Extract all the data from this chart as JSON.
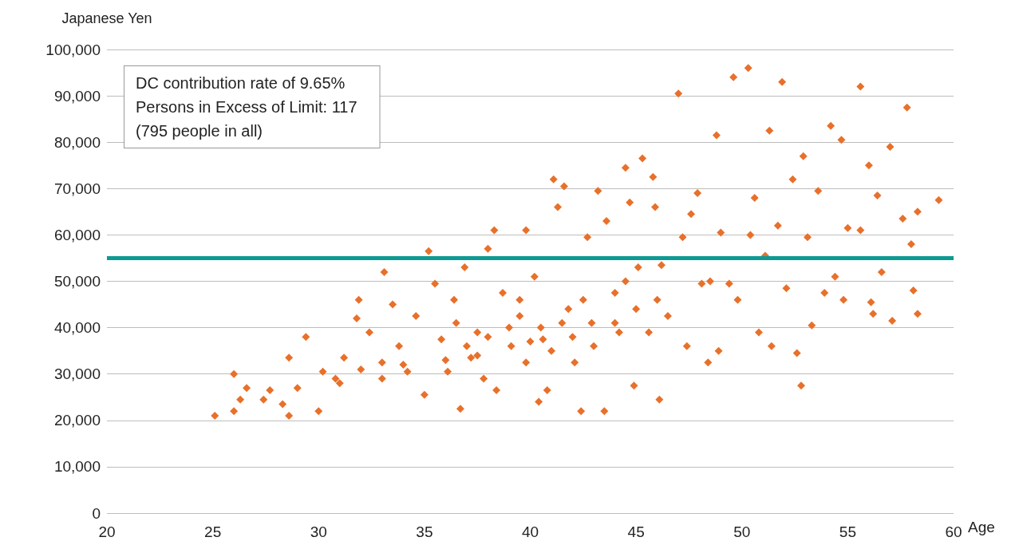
{
  "chart_data": {
    "type": "scatter",
    "xlabel": "Age",
    "ylabel": "Japanese Yen",
    "annotations": [
      "DC contribution rate of 9.65%\nPersons in Excess of Limit: 117\n(795 people in all)"
    ],
    "xlim": [
      20,
      60
    ],
    "xticks": [
      20,
      25,
      30,
      35,
      40,
      45,
      50,
      55,
      60
    ],
    "ylim": [
      0,
      100000
    ],
    "yticks": [
      {
        "value": 0,
        "label": "0"
      },
      {
        "value": 10000,
        "label": "10,000"
      },
      {
        "value": 20000,
        "label": "20,000"
      },
      {
        "value": 30000,
        "label": "30,000"
      },
      {
        "value": 40000,
        "label": "40,000"
      },
      {
        "value": 50000,
        "label": "50,000"
      },
      {
        "value": 60000,
        "label": "60,000"
      },
      {
        "value": 70000,
        "label": "70,000"
      },
      {
        "value": 80000,
        "label": "80,000"
      },
      {
        "value": 90000,
        "label": "90,000"
      },
      {
        "value": 100000,
        "label": "100,000"
      }
    ],
    "grid": "y",
    "marker": "diamond",
    "ref_lines": [
      {
        "axis": "y",
        "value": 55000,
        "label": null,
        "color": "#0e9a93"
      }
    ],
    "series": [
      {
        "color": "#e8702a",
        "x": [
          25.1,
          26.0,
          26.0,
          26.3,
          26.6,
          27.4,
          27.7,
          28.3,
          28.6,
          28.6,
          29.0,
          29.4,
          30.0,
          30.2,
          30.8,
          31.2,
          31.8,
          31.9,
          32.4,
          33.1,
          33.0,
          33.5,
          33.8,
          34.2,
          34.6,
          35.0,
          35.2,
          35.5,
          35.8,
          36.1,
          36.4,
          36.7,
          36.9,
          37.2,
          37.5,
          37.8,
          38.0,
          38.3,
          38.4,
          38.7,
          39.1,
          39.5,
          39.8,
          39.8,
          40.2,
          40.4,
          40.6,
          40.8,
          41.1,
          41.3,
          41.6,
          41.8,
          42.1,
          42.4,
          42.7,
          42.9,
          43.2,
          43.5,
          43.6,
          44.0,
          44.2,
          44.5,
          44.7,
          44.9,
          45.1,
          45.3,
          45.6,
          45.8,
          45.9,
          46.1,
          46.2,
          46.5,
          47.0,
          47.2,
          47.4,
          47.6,
          47.9,
          48.1,
          48.4,
          48.5,
          48.8,
          48.9,
          49.0,
          49.4,
          49.6,
          49.8,
          50.3,
          50.4,
          50.6,
          50.8,
          51.1,
          51.3,
          51.4,
          51.7,
          51.9,
          52.1,
          52.4,
          52.6,
          52.8,
          52.9,
          53.1,
          53.3,
          53.6,
          53.9,
          54.2,
          54.4,
          54.7,
          54.8,
          55.0,
          55.6,
          55.6,
          56.0,
          56.1,
          56.2,
          56.4,
          56.6,
          57.0,
          57.1,
          57.6,
          57.8,
          58.0,
          58.1,
          58.3,
          58.3,
          59.3,
          36.0,
          37.0,
          37.5,
          38.0,
          39.0,
          40.0,
          40.5,
          41.0,
          41.5,
          42.0,
          43.0,
          44.0,
          45.0,
          46.0,
          34.0,
          33.0,
          32.0,
          31.0,
          36.5,
          39.5,
          42.5,
          44.5
        ],
        "values": [
          21000,
          22000,
          30000,
          24500,
          27000,
          24500,
          26500,
          23500,
          21000,
          33500,
          27000,
          38000,
          22000,
          30500,
          29000,
          33500,
          42000,
          46000,
          39000,
          52000,
          32500,
          45000,
          36000,
          30500,
          42500,
          25500,
          56500,
          49500,
          37500,
          30500,
          46000,
          22500,
          53000,
          33500,
          39000,
          29000,
          57000,
          61000,
          26500,
          47500,
          36000,
          42500,
          61000,
          32500,
          51000,
          24000,
          37500,
          26500,
          72000,
          66000,
          70500,
          44000,
          32500,
          22000,
          59500,
          41000,
          69500,
          22000,
          63000,
          47500,
          39000,
          74500,
          67000,
          27500,
          53000,
          76500,
          39000,
          72500,
          66000,
          24500,
          53500,
          42500,
          90500,
          59500,
          36000,
          64500,
          69000,
          49500,
          32500,
          50000,
          81500,
          35000,
          60500,
          49500,
          94000,
          46000,
          96000,
          60000,
          68000,
          39000,
          55500,
          82500,
          36000,
          62000,
          93000,
          48500,
          72000,
          34500,
          27500,
          77000,
          59500,
          40500,
          69500,
          47500,
          83500,
          51000,
          80500,
          46000,
          61500,
          92000,
          61000,
          75000,
          45500,
          43000,
          68500,
          52000,
          79000,
          41500,
          63500,
          87500,
          58000,
          48000,
          65000,
          43000,
          67500,
          33000,
          36000,
          34000,
          38000,
          40000,
          37000,
          40000,
          35000,
          41000,
          38000,
          36000,
          41000,
          44000,
          46000,
          32000,
          29000,
          31000,
          28000,
          41000,
          46000,
          46000,
          50000
        ]
      }
    ]
  }
}
